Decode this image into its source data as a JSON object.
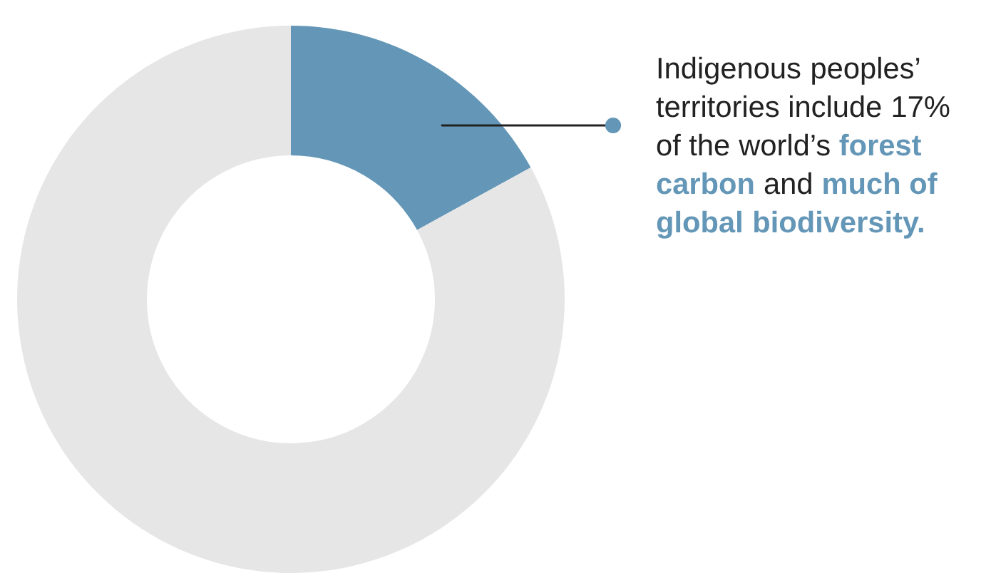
{
  "chart_data": {
    "type": "donut",
    "categories": [
      null,
      null
    ],
    "values": [
      17,
      83
    ],
    "colors": [
      "#6497b7",
      "#e6e6e6"
    ],
    "annotations": [
      "Indigenous peoples’ territories include 17% of the world’s",
      "forest carbon",
      "and",
      "much of global biodiversity."
    ]
  }
}
